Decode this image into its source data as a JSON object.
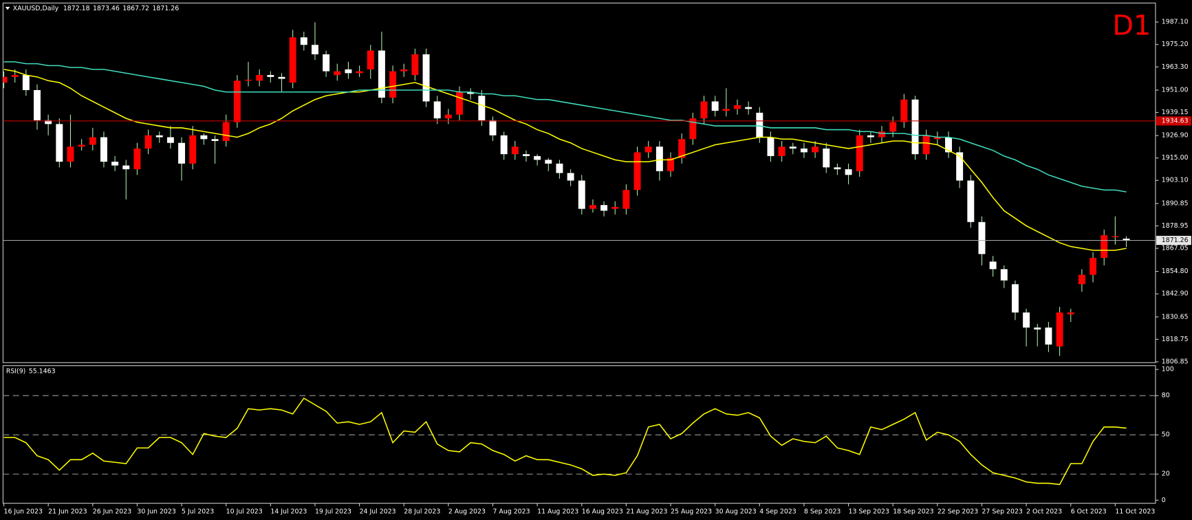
{
  "chart_data": [
    {
      "type": "candlestick",
      "title": "XAUUSD,Daily",
      "timeframe": "D1",
      "categories": [
        "16 Jun 2023",
        null,
        null,
        null,
        "21 Jun 2023",
        null,
        null,
        null,
        "26 Jun 2023",
        null,
        null,
        null,
        "30 Jun 2023",
        null,
        null,
        null,
        "5 Jul 2023",
        null,
        null,
        null,
        "10 Jul 2023",
        null,
        null,
        null,
        "14 Jul 2023",
        null,
        null,
        null,
        "19 Jul 2023",
        null,
        null,
        null,
        "24 Jul 2023",
        null,
        null,
        null,
        "28 Jul 2023",
        null,
        null,
        null,
        "2 Aug 2023",
        null,
        null,
        null,
        "7 Aug 2023",
        null,
        null,
        null,
        "11 Aug 2023",
        null,
        null,
        null,
        "16 Aug 2023",
        null,
        null,
        null,
        "21 Aug 2023",
        null,
        null,
        null,
        "25 Aug 2023",
        null,
        null,
        null,
        "30 Aug 2023",
        null,
        null,
        null,
        "4 Sep 2023",
        null,
        null,
        null,
        "8 Sep 2023",
        null,
        null,
        null,
        "13 Sep 2023",
        null,
        null,
        null,
        "18 Sep 2023",
        null,
        null,
        null,
        "22 Sep 2023",
        null,
        null,
        null,
        "27 Sep 2023",
        null,
        null,
        null,
        "2 Oct 2023",
        null,
        null,
        null,
        "6 Oct 2023",
        null,
        null,
        null,
        "11 Oct 2023",
        null
      ],
      "open": [
        1955,
        1958,
        1959,
        1951,
        1935,
        1933,
        1913,
        1921,
        1922,
        1926,
        1913,
        1911,
        1909,
        1920,
        1927,
        1926,
        1923,
        1912,
        1927,
        1925,
        1924,
        1934,
        1956,
        1956,
        1959,
        1958,
        1955,
        1979,
        1975,
        1970,
        1959,
        1962,
        1960,
        1962,
        1972,
        1947,
        1961,
        1959,
        1970,
        1945,
        1936,
        1938,
        1950,
        1948,
        1935,
        1927,
        1917,
        1917,
        1916,
        1914,
        1912,
        1907,
        1903,
        1888,
        1890,
        1888,
        1888,
        1898,
        1918,
        1921,
        1908,
        1915,
        1925,
        1936,
        1945,
        1940,
        1941,
        1942,
        1939,
        1926,
        1916,
        1921,
        1920,
        1918,
        1920,
        1910,
        1909,
        1908,
        1927,
        1926,
        1929,
        1934,
        1946,
        1917,
        1925,
        1926,
        1918,
        1903,
        1881,
        1860,
        1856,
        1848,
        1833,
        1825,
        1825,
        1815,
        1832,
        1848,
        1853,
        1862,
        1873,
        1872.18
      ],
      "high": [
        1961,
        1962,
        1962,
        1954,
        1938,
        1936,
        1938,
        1925,
        1931,
        1929,
        1916,
        1914,
        1923,
        1930,
        1929,
        1932,
        1926,
        1932,
        1928,
        1927,
        1938,
        1959,
        1966,
        1962,
        1961,
        1960,
        1983,
        1982,
        1987,
        1972,
        1965,
        1966,
        1964,
        1975,
        1982,
        1964,
        1965,
        1973,
        1973,
        1948,
        1941,
        1953,
        1952,
        1951,
        1937,
        1929,
        1924,
        1919,
        1917,
        1915,
        1914,
        1909,
        1906,
        1893,
        1892,
        1892,
        1901,
        1921,
        1924,
        1924,
        1918,
        1928,
        1939,
        1948,
        1948,
        1952,
        1946,
        1945,
        1942,
        1929,
        1924,
        1923,
        1923,
        1924,
        1923,
        1912,
        1912,
        1930,
        1929,
        1932,
        1937,
        1949,
        1948,
        1930,
        1929,
        1929,
        1921,
        1906,
        1884,
        1863,
        1858,
        1850,
        1835,
        1827,
        1828,
        1836,
        1835,
        1856,
        1865,
        1877,
        1884,
        1873.46
      ],
      "low": [
        1952,
        1955,
        1948,
        1930,
        1927,
        1910,
        1910,
        1919,
        1919,
        1910,
        1908,
        1893,
        1906,
        1917,
        1923,
        1920,
        1903,
        1909,
        1922,
        1912,
        1921,
        1931,
        1953,
        1953,
        1955,
        1950,
        1952,
        1972,
        1967,
        1958,
        1956,
        1957,
        1958,
        1957,
        1944,
        1944,
        1958,
        1956,
        1942,
        1933,
        1933,
        1935,
        1946,
        1932,
        1924,
        1914,
        1914,
        1913,
        1911,
        1908,
        1904,
        1900,
        1885,
        1886,
        1884,
        1885,
        1885,
        1895,
        1915,
        1903,
        1905,
        1912,
        1922,
        1933,
        1937,
        1937,
        1938,
        1938,
        1923,
        1913,
        1913,
        1917,
        1915,
        1915,
        1907,
        1906,
        1901,
        1905,
        1923,
        1923,
        1926,
        1931,
        1914,
        1914,
        1922,
        1915,
        1899,
        1878,
        1858,
        1852,
        1846,
        1829,
        1815,
        1815,
        1812,
        1810,
        1828,
        1844,
        1849,
        1858,
        1869,
        1867.72
      ],
      "close": [
        1958,
        1959,
        1951,
        1935,
        1933,
        1913,
        1921,
        1922,
        1926,
        1913,
        1911,
        1909,
        1920,
        1927,
        1926,
        1923,
        1912,
        1927,
        1925,
        1924,
        1934,
        1956,
        1956.5,
        1959,
        1958,
        1957,
        1979,
        1975,
        1970,
        1961,
        1961,
        1960,
        1961,
        1972,
        1947,
        1961,
        1962,
        1970,
        1945,
        1936,
        1938,
        1950,
        1949,
        1935,
        1927,
        1917,
        1921,
        1916,
        1914,
        1912,
        1907,
        1903,
        1888,
        1890,
        1887,
        1889,
        1898,
        1918,
        1921,
        1908,
        1915,
        1925,
        1936,
        1945,
        1940,
        1941,
        1943,
        1941,
        1926,
        1916,
        1921,
        1920,
        1918,
        1921,
        1910,
        1909,
        1906,
        1927,
        1926,
        1929,
        1934,
        1946,
        1917,
        1927,
        1926,
        1918,
        1903,
        1881,
        1864,
        1856,
        1850,
        1833,
        1825,
        1824,
        1816,
        1833,
        1833,
        1853,
        1862,
        1874,
        1873.5,
        1871.26
      ],
      "up_color": "#ff0000",
      "down_color": "#ffffff",
      "wick_color": "#a8e8a8",
      "series": [
        {
          "color": "#ffff00",
          "values": [
            1962,
            1961,
            1959,
            1958,
            1956,
            1955,
            1952,
            1948,
            1945,
            1942,
            1939,
            1936,
            1934,
            1933,
            1932,
            1931,
            1931,
            1930,
            1929,
            1928,
            1927,
            1926,
            1928,
            1931,
            1933,
            1936,
            1940,
            1943,
            1946,
            1948,
            1949,
            1950,
            1950,
            1951,
            1952,
            1953,
            1954,
            1955,
            1953,
            1951,
            1949,
            1947,
            1945,
            1943,
            1941,
            1938,
            1935,
            1933,
            1930,
            1928,
            1925,
            1923,
            1920,
            1918,
            1916,
            1914,
            1913,
            1913,
            1913,
            1914,
            1914,
            1916,
            1918,
            1920,
            1922,
            1923,
            1924,
            1925,
            1926,
            1926,
            1925,
            1925,
            1924,
            1923,
            1922,
            1921,
            1920,
            1921,
            1922,
            1923,
            1924,
            1924,
            1923,
            1923,
            1922,
            1919,
            1916,
            1909,
            1902,
            1894,
            1887,
            1883,
            1879,
            1876,
            1873,
            1870,
            1868,
            1867,
            1866,
            1866,
            1866,
            1867
          ]
        },
        {
          "color": "#3fdcbc",
          "values": [
            1966,
            1966,
            1965,
            1965,
            1964,
            1964,
            1963,
            1963,
            1962,
            1962,
            1961,
            1960,
            1959,
            1958,
            1957,
            1956,
            1955,
            1954,
            1953,
            1951,
            1950,
            1950,
            1950,
            1950,
            1950,
            1950,
            1950,
            1950,
            1950,
            1950,
            1950,
            1950,
            1951,
            1951,
            1951,
            1951,
            1951,
            1951,
            1951,
            1951,
            1951,
            1950,
            1950,
            1949,
            1949,
            1948,
            1948,
            1947,
            1946,
            1946,
            1945,
            1944,
            1943,
            1942,
            1941,
            1940,
            1939,
            1938,
            1937,
            1936,
            1935,
            1935,
            1934,
            1933,
            1932,
            1932,
            1932,
            1932,
            1932,
            1931,
            1931,
            1931,
            1931,
            1931,
            1930,
            1930,
            1930,
            1929,
            1929,
            1928,
            1928,
            1928,
            1927,
            1927,
            1926,
            1926,
            1925,
            1923,
            1921,
            1919,
            1916,
            1914,
            1911,
            1909,
            1906,
            1904,
            1902,
            1900,
            1899,
            1898,
            1898,
            1897
          ]
        }
      ],
      "hline": 1934.63,
      "hline_color": "#c80000",
      "ylim": [
        1806.4,
        1997.2
      ],
      "yticks": [
        {
          "value": 1987.1,
          "label": "1987.10"
        },
        {
          "value": 1975.2,
          "label": "1975.20"
        },
        {
          "value": 1963.3,
          "label": "1963.30"
        },
        {
          "value": 1951,
          "label": "1951.00"
        },
        {
          "value": 1939.15,
          "label": "1939.15"
        },
        {
          "value": 1926.9,
          "label": "1926.90"
        },
        {
          "value": 1915,
          "label": "1915.00"
        },
        {
          "value": 1903.1,
          "label": "1903.10"
        },
        {
          "value": 1890.85,
          "label": "1890.85"
        },
        {
          "value": 1878.95,
          "label": "1878.95"
        },
        {
          "value": 1867.05,
          "label": "1867.05"
        },
        {
          "value": 1854.8,
          "label": "1854.80"
        },
        {
          "value": 1842.9,
          "label": "1842.90"
        },
        {
          "value": 1830.65,
          "label": "1830.65"
        },
        {
          "value": 1818.75,
          "label": "1818.75"
        },
        {
          "value": 1806.85,
          "label": "1806.85"
        }
      ]
    },
    {
      "type": "line",
      "title": "RSI(9)",
      "series": [
        {
          "color": "#ffff00",
          "values": [
            48,
            48,
            44,
            34,
            31,
            23,
            31,
            31,
            36,
            30,
            29,
            28,
            40,
            40,
            48,
            48,
            44,
            35,
            51,
            49,
            48,
            55,
            70,
            69,
            70,
            69,
            66,
            78,
            73,
            68,
            59,
            60,
            58,
            60,
            67,
            44,
            53,
            52,
            60,
            43,
            38,
            37,
            44,
            43,
            38,
            35,
            30,
            34,
            31,
            31,
            29,
            27,
            24,
            19,
            20,
            19,
            21,
            34,
            56,
            58,
            47,
            51,
            59,
            66,
            70,
            66,
            65,
            67,
            63,
            49,
            42,
            47,
            45,
            44,
            49,
            40,
            38,
            35,
            56,
            54,
            58,
            62,
            67,
            46,
            52,
            50,
            45,
            35,
            27,
            21,
            19,
            17,
            14,
            13,
            13,
            12,
            28,
            28,
            45,
            56,
            56,
            55.1463
          ]
        }
      ],
      "ylim": [
        0,
        100
      ],
      "yticks": [
        0,
        20,
        50,
        80,
        100
      ],
      "level_color": "#9a9a9a"
    }
  ]
}
